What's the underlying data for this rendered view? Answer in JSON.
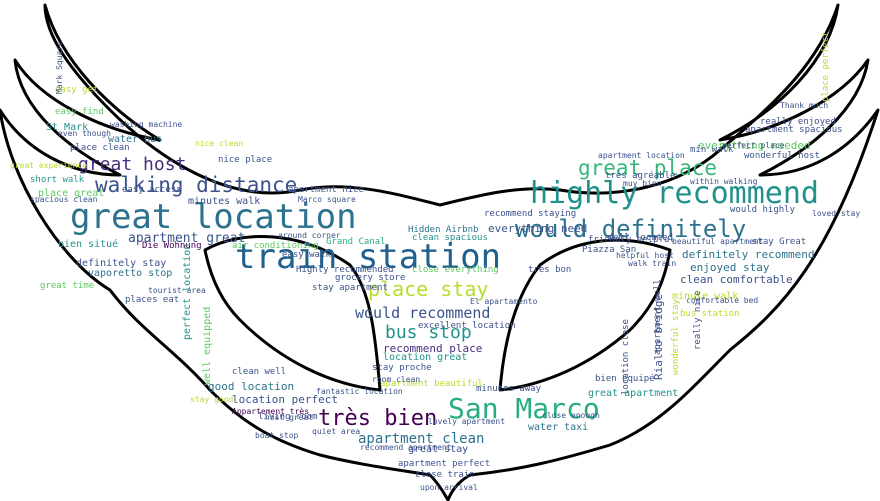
{
  "title": "",
  "colors": {
    "outline": "#000000",
    "background": "#ffffff",
    "palette": [
      "#440154",
      "#3b528b",
      "#21918c",
      "#5ec962",
      "#b5de2b",
      "#2c728e",
      "#472d7b",
      "#27ad81",
      "#fde725"
    ]
  },
  "words": [
    {
      "text": "great location",
      "color": "#2c728e"
    },
    {
      "text": "train station",
      "color": "#21608d"
    },
    {
      "text": "highly recommend",
      "color": "#21918c"
    },
    {
      "text": "San Marco",
      "color": "#27ad81"
    },
    {
      "text": "would definitely",
      "color": "#2c728e"
    },
    {
      "text": "walking distance",
      "color": "#3b528b"
    },
    {
      "text": "great place",
      "color": "#35b779"
    },
    {
      "text": "place stay",
      "color": "#b5de2b"
    },
    {
      "text": "great host",
      "color": "#472d7b"
    },
    {
      "text": "très bien",
      "color": "#440154"
    },
    {
      "text": "bus stop",
      "color": "#21918c"
    },
    {
      "text": "would recommend",
      "color": "#3b528b"
    },
    {
      "text": "apartment clean",
      "color": "#2c728e"
    },
    {
      "text": "apartment great",
      "color": "#3b528b"
    },
    {
      "text": "everything needed",
      "color": "#5ec962"
    },
    {
      "text": "definitely recommend",
      "color": "#2c728e"
    },
    {
      "text": "clean comfortable",
      "color": "#3b528b"
    },
    {
      "text": "enjoyed stay",
      "color": "#2c728e"
    },
    {
      "text": "everything need",
      "color": "#3b528b"
    },
    {
      "text": "recommend place",
      "color": "#472d7b"
    },
    {
      "text": "location great",
      "color": "#21918c"
    },
    {
      "text": "good location",
      "color": "#2c728e"
    },
    {
      "text": "location perfect",
      "color": "#3b528b"
    },
    {
      "text": "water taxi",
      "color": "#2c728e"
    },
    {
      "text": "great stay",
      "color": "#3b528b"
    },
    {
      "text": "great apartment",
      "color": "#21918c"
    },
    {
      "text": "Rialto bridge",
      "color": "#3b528b"
    },
    {
      "text": "definitely stay",
      "color": "#3b528b"
    },
    {
      "text": "vaporetto stop",
      "color": "#2c728e"
    },
    {
      "text": "bien situé",
      "color": "#21918c"
    },
    {
      "text": "place great",
      "color": "#5ec962"
    },
    {
      "text": "water bus",
      "color": "#2c728e"
    },
    {
      "text": "St Mark",
      "color": "#21918c"
    },
    {
      "text": "minutes walk",
      "color": "#3b528b"
    },
    {
      "text": "minute walk",
      "color": "#b5de2b"
    },
    {
      "text": "Highly recommended",
      "color": "#3b528b"
    },
    {
      "text": "close everything",
      "color": "#5ec962"
    },
    {
      "text": "excellent location",
      "color": "#3b528b"
    },
    {
      "text": "Grand Canal",
      "color": "#27ad81"
    },
    {
      "text": "Hidden Airbnb",
      "color": "#2c728e"
    },
    {
      "text": "clean spacious",
      "color": "#21918c"
    },
    {
      "text": "recommend staying",
      "color": "#3b528b"
    },
    {
      "text": "air conditioning",
      "color": "#5ec962"
    },
    {
      "text": "Die Wohnung",
      "color": "#440154"
    },
    {
      "text": "perfect location",
      "color": "#21918c"
    },
    {
      "text": "well equipped",
      "color": "#5ec962"
    },
    {
      "text": "great time",
      "color": "#5ec962"
    },
    {
      "text": "places eat",
      "color": "#3b528b"
    },
    {
      "text": "nice place",
      "color": "#3b528b"
    },
    {
      "text": "easy access",
      "color": "#3b528b"
    },
    {
      "text": "place clean",
      "color": "#3b528b"
    },
    {
      "text": "short walk",
      "color": "#21918c"
    },
    {
      "text": "easy find",
      "color": "#5ec962"
    },
    {
      "text": "stay Great",
      "color": "#3b528b"
    },
    {
      "text": "well located",
      "color": "#3b528b"
    },
    {
      "text": "would highly",
      "color": "#3b528b"
    },
    {
      "text": "wonderful host",
      "color": "#3b528b"
    },
    {
      "text": "really enjoyed",
      "color": "#3b528b"
    },
    {
      "text": "apartment spacious",
      "color": "#3b528b"
    },
    {
      "text": "min walk",
      "color": "#3b528b"
    },
    {
      "text": "très agréable",
      "color": "#3b528b"
    },
    {
      "text": "très bon",
      "color": "#3b528b"
    },
    {
      "text": "Piazza San",
      "color": "#3b528b"
    },
    {
      "text": "friendly helpful",
      "color": "#3b528b"
    },
    {
      "text": "bus station",
      "color": "#b5de2b"
    },
    {
      "text": "wonderful stay",
      "color": "#b5de2b"
    },
    {
      "text": "really nice",
      "color": "#3b528b"
    },
    {
      "text": "apartment well",
      "color": "#3b528b"
    },
    {
      "text": "location close",
      "color": "#3b528b"
    },
    {
      "text": "bien equipé",
      "color": "#3b528b"
    },
    {
      "text": "living room",
      "color": "#3b528b"
    },
    {
      "text": "Appartement très",
      "color": "#440154"
    },
    {
      "text": "grocery store",
      "color": "#3b528b"
    },
    {
      "text": "stay apartment",
      "color": "#3b528b"
    },
    {
      "text": "easy walk",
      "color": "#3b528b"
    },
    {
      "text": "apartment perfect",
      "color": "#3b528b"
    },
    {
      "text": "close train",
      "color": "#3b528b"
    },
    {
      "text": "clean well",
      "color": "#3b528b"
    },
    {
      "text": "stay proche",
      "color": "#3b528b"
    },
    {
      "text": "quiet area",
      "color": "#3b528b"
    },
    {
      "text": "lovely apartment",
      "color": "#3b528b"
    },
    {
      "text": "apartment beautiful",
      "color": "#b5de2b"
    },
    {
      "text": "minutes away",
      "color": "#3b528b"
    },
    {
      "text": "apartment nice",
      "color": "#3b528b"
    },
    {
      "text": "Marco square",
      "color": "#3b528b"
    },
    {
      "text": "around corner",
      "color": "#3b528b"
    },
    {
      "text": "muy bien",
      "color": "#3b528b"
    },
    {
      "text": "within walking",
      "color": "#3b528b"
    },
    {
      "text": "apartment location",
      "color": "#3b528b"
    },
    {
      "text": "beautiful apartment",
      "color": "#3b528b"
    },
    {
      "text": "comfortable bed",
      "color": "#3b528b"
    },
    {
      "text": "El apartamento",
      "color": "#3b528b"
    },
    {
      "text": "easy get",
      "color": "#b5de2b"
    },
    {
      "text": "spacious clean",
      "color": "#3b528b"
    },
    {
      "text": "Mark Square",
      "color": "#3b528b"
    },
    {
      "text": "washing machine",
      "color": "#3b528b"
    },
    {
      "text": "Thank much",
      "color": "#3b528b"
    },
    {
      "text": "place perfect",
      "color": "#b5de2b"
    },
    {
      "text": "loved stay",
      "color": "#3b528b"
    },
    {
      "text": "helpful host",
      "color": "#3b528b"
    },
    {
      "text": "even though",
      "color": "#3b528b"
    },
    {
      "text": "nice clean",
      "color": "#b5de2b"
    },
    {
      "text": "stay good",
      "color": "#b5de2b"
    },
    {
      "text": "great experience",
      "color": "#b5de2b"
    },
    {
      "text": "perfect place",
      "color": "#3b528b"
    },
    {
      "text": "walk train",
      "color": "#3b528b"
    },
    {
      "text": "close enough",
      "color": "#3b528b"
    },
    {
      "text": "tourist area",
      "color": "#3b528b"
    },
    {
      "text": "host great",
      "color": "#3b528b"
    },
    {
      "text": "recommend apartment",
      "color": "#3b528b"
    },
    {
      "text": "fantastic location",
      "color": "#3b528b"
    },
    {
      "text": "room clean",
      "color": "#3b528b"
    },
    {
      "text": "boat stop",
      "color": "#3b528b"
    },
    {
      "text": "upon arrival",
      "color": "#3b528b"
    }
  ]
}
